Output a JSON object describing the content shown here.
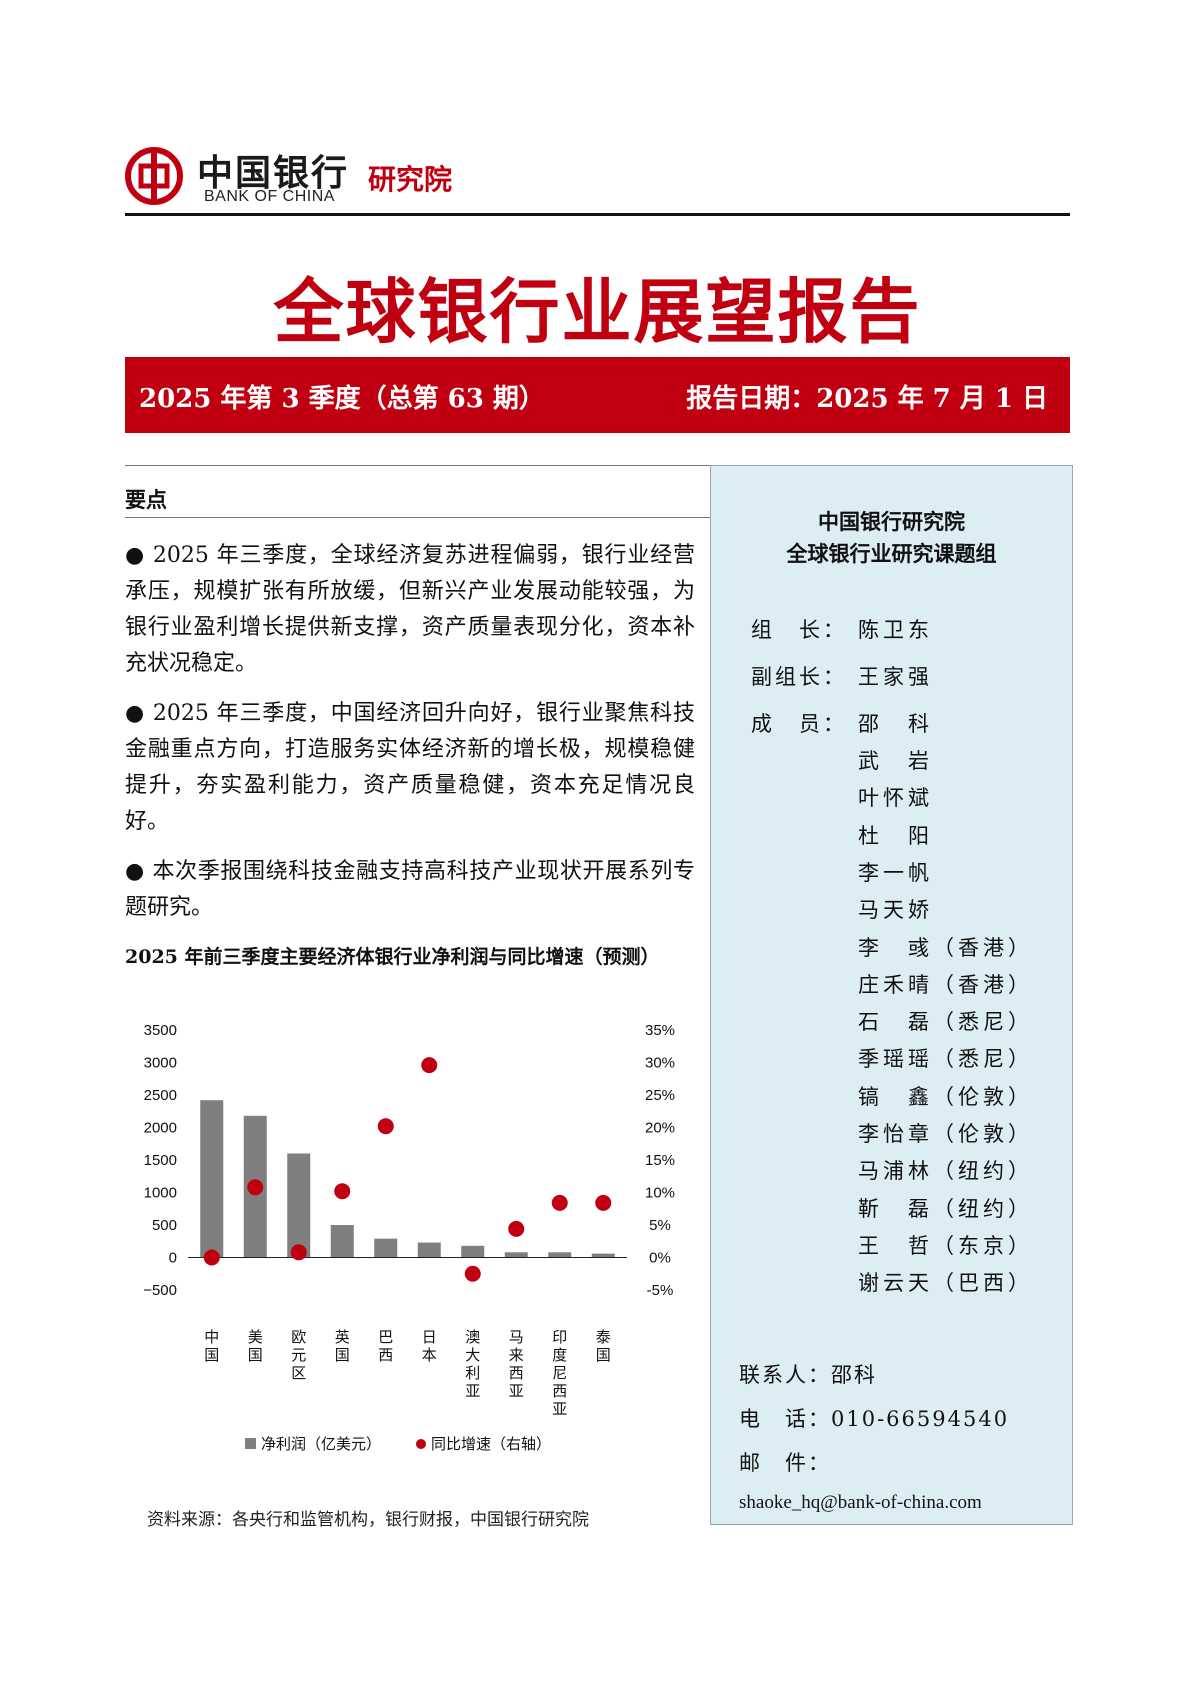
{
  "header": {
    "logo_cn": "中国银行",
    "logo_en": "BANK OF CHINA",
    "institute": "研究院"
  },
  "title": "全球银行业展望报告",
  "banner": {
    "issue": "2025 年第 3 季度（总第 63 期）",
    "date": "报告日期：2025 年 7 月 1 日"
  },
  "summary": {
    "label": "要点",
    "bullets": [
      "● 2025 年三季度，全球经济复苏进程偏弱，银行业经营承压，规模扩张有所放缓，但新兴产业发展动能较强，为银行业盈利增长提供新支撑，资产质量表现分化，资本补充状况稳定。",
      "● 2025 年三季度，中国经济回升向好，银行业聚焦科技金融重点方向，打造服务实体经济新的增长极，规模稳健提升，夯实盈利能力，资产质量稳健，资本充足情况良好。",
      "●  本次季报围绕科技金融支持高科技产业现状开展系列专题研究。"
    ]
  },
  "chart_title": "2025 年前三季度主要经济体银行业净利润与同比增速（预测）",
  "chart_data": {
    "type": "bar",
    "categories": [
      "中国",
      "美国",
      "欧元区",
      "英国",
      "巴西",
      "日本",
      "澳大利亚",
      "马来西亚",
      "印度尼西亚",
      "泰国"
    ],
    "series": [
      {
        "name": "净利润（亿美元）",
        "type": "bar",
        "axis": "left",
        "color": "#7f7f7f",
        "values": [
          2420,
          2180,
          1600,
          500,
          290,
          230,
          180,
          80,
          80,
          60
        ]
      },
      {
        "name": "同比增速（右轴）",
        "type": "scatter",
        "axis": "right",
        "color": "#c00010",
        "values": [
          0.0,
          10.8,
          0.8,
          10.2,
          20.2,
          29.6,
          -2.5,
          4.4,
          8.4,
          8.4
        ]
      }
    ],
    "y_left": {
      "min": -500,
      "max": 3500,
      "ticks": [
        "3500",
        "3000",
        "2500",
        "2000",
        "1500",
        "1000",
        "500",
        "0",
        "−500"
      ]
    },
    "y_right": {
      "min": -5,
      "max": 35,
      "ticks": [
        "35%",
        "30%",
        "25%",
        "20%",
        "15%",
        "10%",
        "5%",
        "0%",
        "-5%"
      ]
    },
    "legend": {
      "placement": "bottom",
      "items": [
        "净利润（亿美元）",
        "同比增速（右轴）"
      ]
    }
  },
  "source": "资料来源：各央行和监管机构，银行财报，中国银行研究院",
  "panel": {
    "org": "中国银行研究院",
    "group": "全球银行业研究课题组",
    "roles": [
      {
        "role": "组　长：",
        "name": "陈卫东"
      },
      {
        "role": "副组长：",
        "name": "王家强"
      },
      {
        "role": "成　员：",
        "name": "邵　科"
      }
    ],
    "members": [
      "武　岩",
      "叶怀斌",
      "杜　阳",
      "李一帆",
      "马天娇",
      "李　彧（香港）",
      "庄禾晴（香港）",
      "石　磊（悉尼）",
      "季瑶瑶（悉尼）",
      "镐　鑫（伦敦）",
      "李怡章（伦敦）",
      "马浦林（纽约）",
      "靳　磊（纽约）",
      "王　哲（东京）",
      "谢云天（巴西）"
    ],
    "contact_person": "联系人：邵科",
    "phone": "电　话：010-66594540",
    "mail_label": "邮　件：",
    "email": "shaoke_hq@bank-of-china.com"
  }
}
